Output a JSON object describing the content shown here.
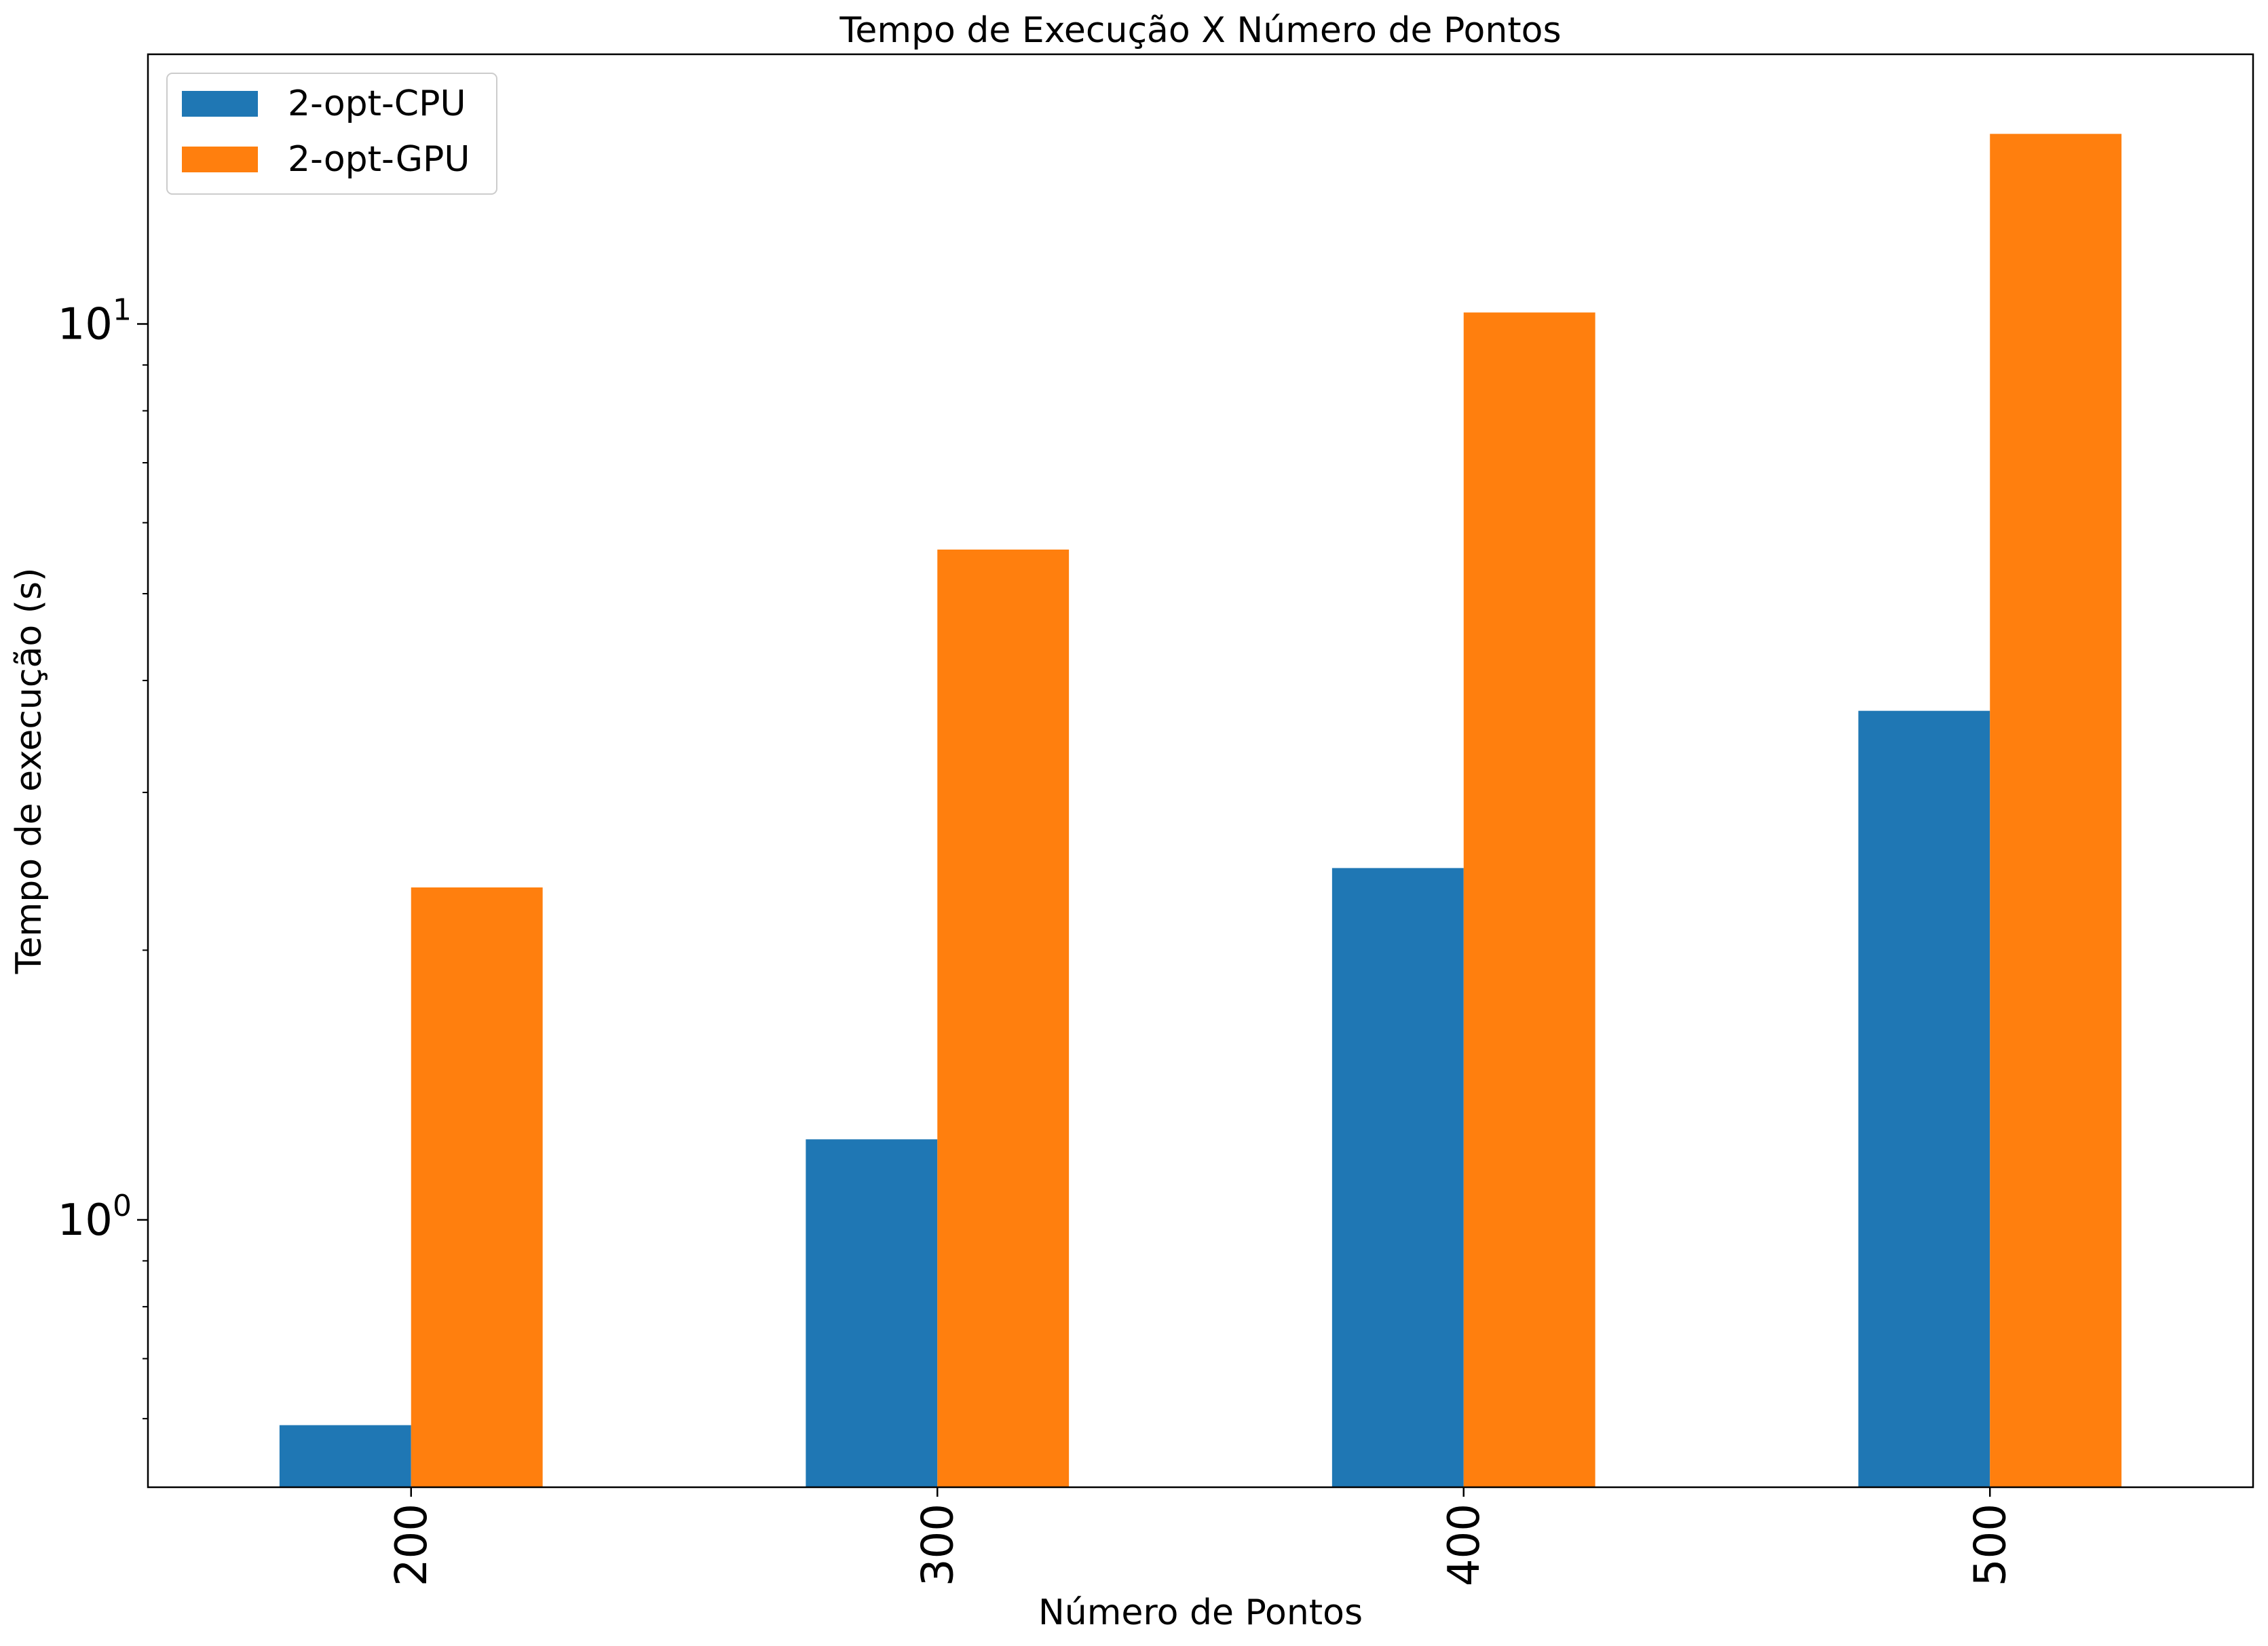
{
  "chart_data": {
    "type": "bar",
    "title": "Tempo de Execução X Número de Pontos",
    "xlabel": "Número de Pontos",
    "ylabel": "Tempo de execução (s)",
    "categories": [
      "200",
      "300",
      "400",
      "500"
    ],
    "series": [
      {
        "name": "2-opt-CPU",
        "color": "#1f77b4",
        "values": [
          0.59,
          1.23,
          2.47,
          3.7
        ]
      },
      {
        "name": "2-opt-GPU",
        "color": "#ff7f0e",
        "values": [
          2.35,
          5.6,
          10.3,
          16.3
        ]
      }
    ],
    "y_scale": "log",
    "ylim": [
      0.503,
      20.0
    ],
    "yticks": [
      {
        "value": 1,
        "base": "10",
        "exp": "0"
      },
      {
        "value": 10,
        "base": "10",
        "exp": "1"
      }
    ],
    "legend_position": "upper-left",
    "grid": false
  }
}
